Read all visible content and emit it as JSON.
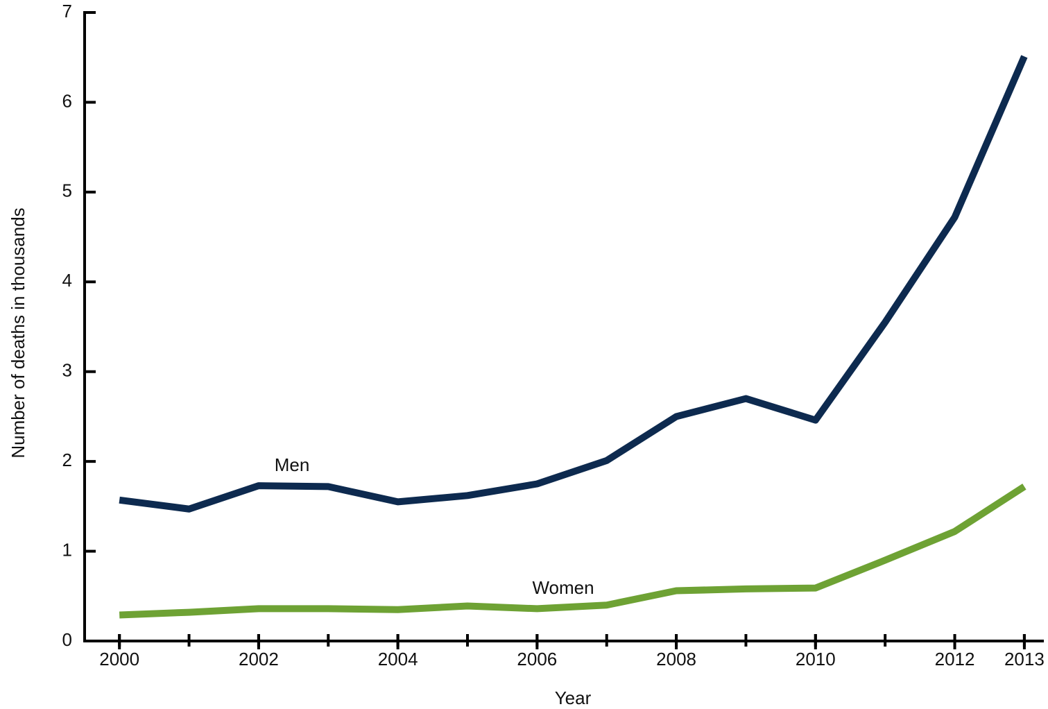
{
  "chart_data": {
    "type": "line",
    "x_label": "Year",
    "y_label": "Number of deaths in thousands",
    "x": [
      2000,
      2001,
      2002,
      2003,
      2004,
      2005,
      2006,
      2007,
      2008,
      2009,
      2010,
      2011,
      2012,
      2013
    ],
    "series": [
      {
        "name": "Men",
        "color": "#0d2a4f",
        "values": [
          1.57,
          1.47,
          1.73,
          1.72,
          1.55,
          1.62,
          1.75,
          2.01,
          2.5,
          2.7,
          2.46,
          3.55,
          4.72,
          6.51
        ]
      },
      {
        "name": "Women",
        "color": "#6ea234",
        "values": [
          0.29,
          0.32,
          0.36,
          0.36,
          0.35,
          0.39,
          0.36,
          0.4,
          0.56,
          0.58,
          0.59,
          0.9,
          1.22,
          1.72
        ]
      }
    ],
    "xlim": [
      1999.5,
      2013.28
    ],
    "xticks": [
      2000,
      2002,
      2004,
      2006,
      2008,
      2010,
      2012,
      2013
    ],
    "ylim": [
      0,
      7
    ],
    "yticks": [
      0,
      1,
      2,
      3,
      4,
      5,
      6,
      7
    ],
    "grid": false
  }
}
